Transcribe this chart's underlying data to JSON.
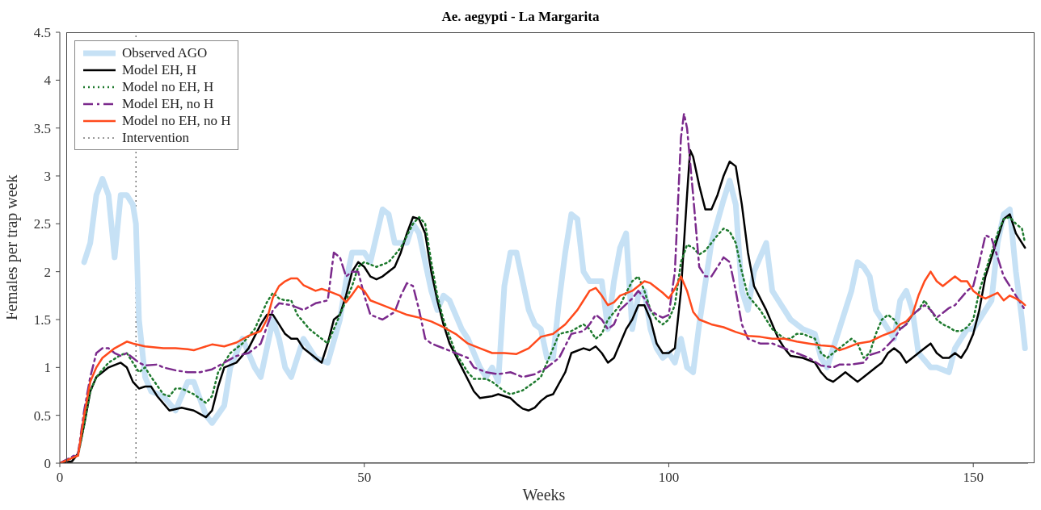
{
  "chart_data": {
    "type": "line",
    "title": "Ae. aegypti - La Margarita",
    "xlabel": "Weeks",
    "ylabel": "Females per trap week",
    "xlim": [
      0,
      159
    ],
    "xticks": [
      0,
      50,
      100,
      150
    ],
    "ylim": [
      0,
      4.5
    ],
    "yticks": [
      0,
      0.5,
      1,
      1.5,
      2,
      2.5,
      3,
      3.5,
      4,
      4.5
    ],
    "legend": "top left",
    "ref_lines": [
      {
        "axis": "x",
        "value": 12.5,
        "label": "Intervention",
        "color": "#333333",
        "line_style": "dotted"
      }
    ],
    "series": [
      {
        "name": "Observed AGO",
        "color": "#c6e1f5",
        "line_style": "solid",
        "x": [
          4,
          5,
          6,
          7,
          8,
          9,
          10,
          11,
          12,
          12.5,
          13,
          14,
          15,
          17,
          19,
          21,
          22,
          24,
          25,
          27,
          28,
          30,
          32,
          33,
          35,
          36,
          37,
          38,
          40,
          42,
          44,
          46,
          47,
          48,
          50,
          51,
          53,
          54,
          55,
          57,
          58,
          59,
          61,
          62,
          63,
          64,
          66,
          67,
          69,
          70,
          71,
          72,
          73,
          74,
          75,
          77,
          78,
          79,
          80,
          81,
          82,
          83,
          84,
          85,
          86,
          87,
          88,
          89,
          90,
          91,
          92,
          93,
          94,
          95,
          96,
          97,
          98,
          99,
          100,
          101,
          102,
          103,
          104,
          105,
          107,
          109,
          110,
          111,
          112,
          113,
          114,
          116,
          117,
          118,
          120,
          122,
          124,
          125,
          126,
          127,
          129,
          130,
          131,
          132,
          133,
          134,
          136,
          137,
          138,
          139,
          140,
          141,
          143,
          144,
          146,
          147,
          148,
          149,
          150,
          151,
          153,
          154,
          155,
          156,
          157,
          158,
          158.5
        ],
        "values": [
          2.1,
          2.3,
          2.8,
          2.97,
          2.8,
          2.15,
          2.8,
          2.8,
          2.7,
          2.5,
          1.5,
          0.9,
          0.75,
          0.7,
          0.55,
          0.85,
          0.85,
          0.5,
          0.42,
          0.6,
          1.0,
          1.3,
          1.0,
          0.9,
          1.5,
          1.3,
          1.0,
          0.9,
          1.3,
          1.1,
          1.05,
          1.5,
          1.9,
          2.2,
          2.2,
          2.1,
          2.65,
          2.6,
          2.3,
          2.3,
          2.5,
          2.4,
          1.8,
          1.6,
          1.75,
          1.7,
          1.4,
          1.3,
          1.0,
          0.9,
          1.0,
          0.85,
          1.85,
          2.2,
          2.2,
          1.6,
          1.45,
          1.4,
          1.1,
          1.1,
          1.7,
          2.2,
          2.6,
          2.55,
          2.0,
          1.9,
          1.9,
          1.9,
          1.4,
          1.9,
          2.25,
          2.4,
          1.4,
          1.75,
          1.8,
          1.4,
          1.2,
          1.1,
          1.15,
          1.05,
          1.3,
          1.0,
          0.95,
          1.45,
          2.3,
          2.75,
          2.95,
          2.7,
          1.8,
          1.6,
          2.0,
          2.3,
          1.8,
          1.7,
          1.5,
          1.4,
          1.35,
          1.1,
          1.0,
          1.2,
          1.6,
          1.8,
          2.1,
          2.05,
          1.95,
          1.6,
          1.4,
          1.3,
          1.7,
          1.8,
          1.6,
          1.15,
          1.0,
          1.0,
          0.95,
          1.2,
          1.3,
          1.4,
          1.4,
          1.5,
          1.7,
          2.3,
          2.6,
          2.65,
          2.0,
          1.5,
          1.2
        ]
      },
      {
        "name": "Model EH, H",
        "color": "#000000",
        "line_style": "solid",
        "x": [
          0,
          2,
          3,
          4,
          5,
          6,
          8,
          10,
          11,
          12,
          13,
          14,
          15,
          16,
          18,
          20,
          22,
          24,
          25,
          26,
          27,
          29,
          31,
          33,
          34,
          35,
          36,
          37,
          38,
          39,
          40,
          42,
          43,
          44,
          45,
          46,
          47,
          48,
          49,
          50,
          51,
          52,
          53,
          55,
          56,
          57,
          58,
          59,
          60,
          61,
          62,
          63,
          64,
          66,
          68,
          69,
          71,
          72,
          74,
          75,
          76,
          77,
          78,
          79,
          80,
          81,
          83,
          84,
          86,
          87,
          88,
          89,
          90,
          91,
          92,
          93,
          94,
          95,
          96,
          97,
          98,
          99,
          100,
          101,
          102,
          103,
          103.5,
          104,
          105,
          106,
          107,
          108,
          109,
          110,
          111,
          112,
          113,
          114,
          116,
          118,
          119,
          120,
          122,
          124,
          125,
          126,
          127,
          128,
          129,
          130,
          131,
          132,
          134,
          135,
          136,
          137,
          138,
          139,
          140,
          141,
          142,
          143,
          144,
          145,
          146,
          147,
          148,
          149,
          150,
          151,
          152,
          153,
          154,
          155,
          156,
          157,
          158,
          158.5
        ],
        "values": [
          0,
          0.02,
          0.1,
          0.4,
          0.75,
          0.9,
          1.0,
          1.05,
          1.0,
          0.85,
          0.78,
          0.8,
          0.8,
          0.7,
          0.55,
          0.58,
          0.55,
          0.48,
          0.55,
          0.8,
          1.0,
          1.05,
          1.2,
          1.45,
          1.55,
          1.55,
          1.45,
          1.35,
          1.3,
          1.3,
          1.2,
          1.1,
          1.05,
          1.25,
          1.5,
          1.55,
          1.75,
          2.0,
          2.1,
          2.05,
          1.95,
          1.92,
          1.95,
          2.05,
          2.2,
          2.4,
          2.57,
          2.55,
          2.4,
          2.0,
          1.7,
          1.45,
          1.25,
          1.0,
          0.75,
          0.68,
          0.7,
          0.72,
          0.68,
          0.62,
          0.57,
          0.55,
          0.58,
          0.65,
          0.7,
          0.72,
          0.95,
          1.15,
          1.2,
          1.18,
          1.22,
          1.15,
          1.05,
          1.1,
          1.25,
          1.4,
          1.5,
          1.65,
          1.65,
          1.5,
          1.25,
          1.15,
          1.15,
          1.2,
          1.8,
          2.8,
          3.27,
          3.2,
          2.9,
          2.65,
          2.65,
          2.8,
          3.0,
          3.15,
          3.1,
          2.7,
          2.2,
          1.85,
          1.6,
          1.3,
          1.2,
          1.12,
          1.1,
          1.05,
          0.95,
          0.88,
          0.85,
          0.9,
          0.95,
          0.9,
          0.85,
          0.9,
          1.0,
          1.05,
          1.15,
          1.2,
          1.15,
          1.05,
          1.1,
          1.15,
          1.2,
          1.25,
          1.15,
          1.1,
          1.1,
          1.15,
          1.1,
          1.2,
          1.35,
          1.6,
          1.95,
          2.15,
          2.35,
          2.55,
          2.6,
          2.4,
          2.3,
          2.25
        ]
      },
      {
        "name": "Model no EH, H",
        "color": "#1e7a2e",
        "line_style": "dotted",
        "x": [
          0,
          3,
          4,
          5,
          6,
          8,
          10,
          11,
          12,
          13,
          14,
          15,
          17,
          18,
          19,
          20,
          22,
          24,
          25,
          26,
          28,
          30,
          32,
          34,
          35,
          36,
          37,
          38,
          39,
          41,
          43,
          44,
          45,
          46,
          48,
          49,
          50,
          52,
          54,
          56,
          58,
          59,
          60,
          61,
          62,
          63,
          65,
          66,
          67,
          68,
          70,
          71,
          73,
          74,
          76,
          78,
          79,
          80,
          81,
          82,
          84,
          86,
          87,
          88,
          89,
          90,
          92,
          93,
          94,
          95,
          96,
          97,
          98,
          99,
          100,
          101,
          102,
          103,
          104,
          105,
          106,
          107,
          108,
          109,
          110,
          111,
          112,
          113,
          115,
          117,
          119,
          120,
          121,
          122,
          124,
          125,
          126,
          127,
          128,
          130,
          131,
          132,
          133,
          134,
          135,
          136,
          137,
          138,
          139,
          140,
          141,
          142,
          143,
          144,
          145,
          146,
          147,
          148,
          149,
          150,
          151,
          153,
          154,
          155,
          156,
          157,
          158,
          158.5
        ],
        "values": [
          0,
          0.08,
          0.4,
          0.75,
          0.9,
          1.05,
          1.13,
          1.15,
          1.05,
          0.95,
          1.0,
          0.9,
          0.72,
          0.7,
          0.78,
          0.78,
          0.72,
          0.63,
          0.7,
          0.95,
          1.15,
          1.25,
          1.4,
          1.68,
          1.78,
          1.72,
          1.7,
          1.7,
          1.55,
          1.4,
          1.3,
          1.25,
          1.4,
          1.55,
          1.85,
          2.05,
          2.1,
          2.05,
          2.1,
          2.25,
          2.5,
          2.57,
          2.5,
          2.1,
          1.75,
          1.5,
          1.15,
          1.05,
          0.95,
          0.88,
          0.88,
          0.85,
          0.75,
          0.72,
          0.76,
          0.85,
          0.9,
          1.05,
          1.2,
          1.35,
          1.38,
          1.45,
          1.4,
          1.3,
          1.35,
          1.5,
          1.65,
          1.78,
          1.9,
          1.95,
          1.8,
          1.6,
          1.5,
          1.45,
          1.5,
          1.65,
          2.1,
          2.28,
          2.25,
          2.18,
          2.22,
          2.3,
          2.38,
          2.45,
          2.42,
          2.3,
          2.0,
          1.75,
          1.6,
          1.4,
          1.3,
          1.3,
          1.35,
          1.35,
          1.3,
          1.15,
          1.1,
          1.15,
          1.2,
          1.3,
          1.25,
          1.1,
          1.15,
          1.35,
          1.5,
          1.55,
          1.5,
          1.4,
          1.45,
          1.55,
          1.6,
          1.7,
          1.6,
          1.5,
          1.45,
          1.42,
          1.38,
          1.38,
          1.42,
          1.5,
          1.8,
          2.2,
          2.4,
          2.55,
          2.57,
          2.5,
          2.45,
          2.3
        ]
      },
      {
        "name": "Model EH, no H",
        "color": "#7b2a8c",
        "line_style": "dashed",
        "x": [
          0,
          3,
          4,
          5,
          6,
          7,
          8,
          9,
          10,
          11,
          12,
          13,
          14,
          16,
          17,
          19,
          21,
          23,
          25,
          27,
          29,
          31,
          33,
          35,
          36,
          38,
          40,
          42,
          44,
          45,
          46,
          47,
          48,
          49,
          50,
          51,
          53,
          55,
          56,
          57,
          58,
          59,
          60,
          61,
          63,
          65,
          67,
          68,
          70,
          72,
          74,
          76,
          78,
          80,
          81,
          82,
          84,
          86,
          87,
          88,
          89,
          90,
          91,
          92,
          94,
          95,
          96,
          97,
          98,
          99,
          100,
          101,
          102,
          102.5,
          103,
          104,
          105,
          106,
          107,
          108,
          109,
          110,
          111,
          112,
          113,
          115,
          117,
          119,
          121,
          123,
          125,
          127,
          128,
          130,
          132,
          133,
          135,
          137,
          138,
          139,
          140,
          141,
          142,
          143,
          144,
          146,
          147,
          149,
          150,
          151,
          152,
          153,
          154,
          155,
          156,
          157,
          158,
          158.5
        ],
        "values": [
          0,
          0.1,
          0.55,
          0.9,
          1.15,
          1.2,
          1.2,
          1.15,
          1.12,
          1.15,
          1.1,
          1.05,
          1.02,
          1.03,
          1.0,
          0.97,
          0.95,
          0.95,
          0.98,
          1.05,
          1.12,
          1.15,
          1.25,
          1.6,
          1.67,
          1.65,
          1.6,
          1.67,
          1.7,
          2.2,
          2.15,
          1.95,
          2.0,
          2.0,
          1.75,
          1.55,
          1.5,
          1.58,
          1.75,
          1.88,
          1.85,
          1.6,
          1.3,
          1.25,
          1.2,
          1.15,
          1.1,
          1.0,
          0.95,
          0.93,
          0.95,
          0.9,
          0.93,
          1.0,
          1.05,
          1.1,
          1.35,
          1.38,
          1.45,
          1.55,
          1.5,
          1.4,
          1.45,
          1.6,
          1.72,
          1.8,
          1.72,
          1.6,
          1.55,
          1.52,
          1.55,
          2.0,
          3.4,
          3.65,
          3.5,
          2.8,
          2.05,
          1.95,
          1.95,
          2.05,
          2.15,
          2.1,
          1.8,
          1.45,
          1.3,
          1.25,
          1.25,
          1.2,
          1.15,
          1.1,
          1.02,
          1.0,
          1.03,
          1.03,
          1.05,
          1.13,
          1.17,
          1.3,
          1.4,
          1.45,
          1.55,
          1.6,
          1.65,
          1.6,
          1.52,
          1.62,
          1.65,
          1.8,
          1.85,
          2.1,
          2.38,
          2.35,
          2.15,
          1.95,
          1.85,
          1.75,
          1.65,
          1.6
        ]
      },
      {
        "name": "Model no EH, no H",
        "color": "#ff4a1c",
        "line_style": "solid",
        "x": [
          0,
          3,
          4,
          5,
          6,
          7,
          9,
          11,
          12,
          14,
          17,
          19,
          21,
          22,
          23,
          25,
          27,
          29,
          31,
          33,
          34,
          35,
          36,
          37,
          38,
          39,
          40,
          42,
          43,
          44,
          46,
          47,
          48,
          49,
          50,
          51,
          53,
          55,
          57,
          59,
          61,
          63,
          65,
          67,
          69,
          71,
          73,
          75,
          77,
          79,
          81,
          83,
          85,
          86,
          87,
          88,
          89,
          90,
          91,
          92,
          94,
          96,
          97,
          99,
          100,
          101,
          102,
          103,
          104,
          105,
          107,
          109,
          111,
          113,
          115,
          117,
          119,
          121,
          123,
          125,
          127,
          128,
          129,
          131,
          133,
          135,
          137,
          138,
          139,
          140,
          141,
          142,
          143,
          144,
          145,
          146,
          147,
          148,
          149,
          150,
          151,
          152,
          153,
          154,
          155,
          156,
          157,
          158,
          158.5
        ],
        "values": [
          0,
          0.08,
          0.5,
          0.85,
          1.0,
          1.1,
          1.2,
          1.27,
          1.25,
          1.22,
          1.2,
          1.2,
          1.19,
          1.18,
          1.2,
          1.24,
          1.22,
          1.26,
          1.33,
          1.38,
          1.5,
          1.73,
          1.85,
          1.9,
          1.93,
          1.93,
          1.86,
          1.8,
          1.82,
          1.8,
          1.75,
          1.68,
          1.76,
          1.85,
          1.8,
          1.7,
          1.65,
          1.6,
          1.55,
          1.52,
          1.48,
          1.42,
          1.35,
          1.25,
          1.2,
          1.15,
          1.15,
          1.14,
          1.2,
          1.32,
          1.35,
          1.45,
          1.6,
          1.7,
          1.8,
          1.83,
          1.75,
          1.65,
          1.68,
          1.75,
          1.8,
          1.9,
          1.88,
          1.78,
          1.72,
          1.82,
          1.95,
          1.8,
          1.58,
          1.5,
          1.45,
          1.42,
          1.37,
          1.33,
          1.32,
          1.3,
          1.3,
          1.27,
          1.25,
          1.23,
          1.22,
          1.18,
          1.2,
          1.25,
          1.27,
          1.33,
          1.38,
          1.45,
          1.48,
          1.55,
          1.75,
          1.9,
          2.0,
          1.9,
          1.85,
          1.9,
          1.95,
          1.9,
          1.9,
          1.8,
          1.75,
          1.72,
          1.75,
          1.78,
          1.7,
          1.75,
          1.72,
          1.68,
          1.65
        ]
      }
    ]
  }
}
